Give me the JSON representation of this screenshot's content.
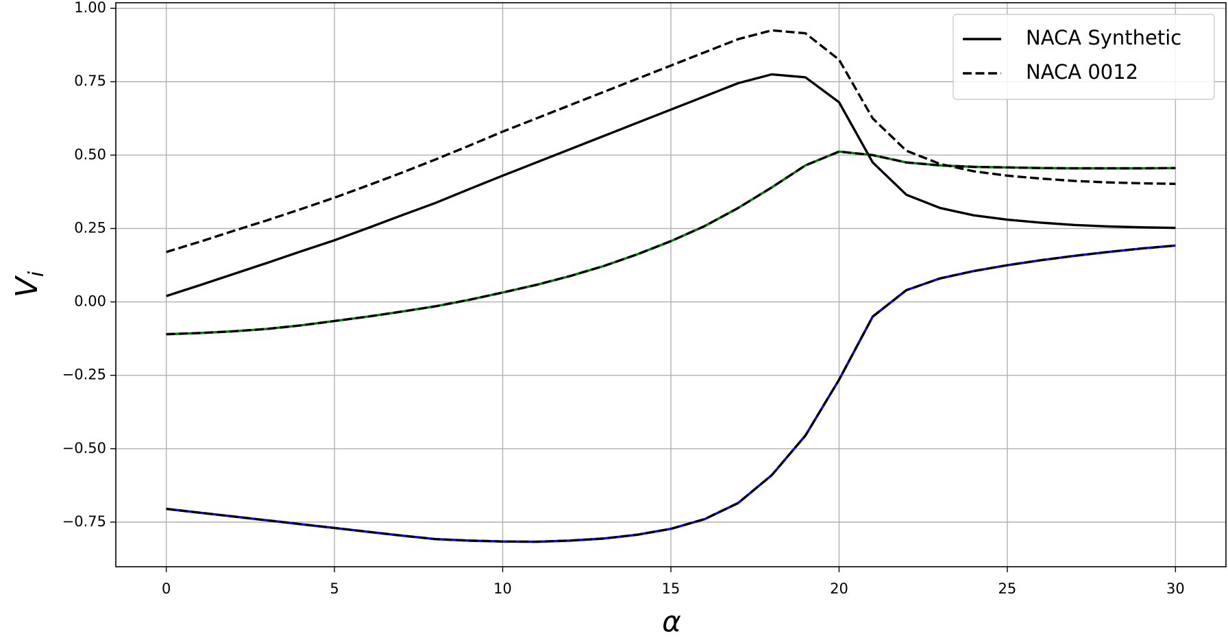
{
  "chart_data": {
    "type": "line",
    "xlabel": "α",
    "ylabel": "V",
    "ylabel_sub": "i",
    "x": [
      0,
      1,
      2,
      3,
      4,
      5,
      6,
      7,
      8,
      9,
      10,
      11,
      12,
      13,
      14,
      15,
      16,
      17,
      18,
      19,
      20,
      21,
      22,
      23,
      24,
      25,
      26,
      27,
      28,
      29,
      30
    ],
    "series": [
      {
        "name": "NACA Synthetic",
        "color": "#000000",
        "linestyle": "solid",
        "values": [
          0.02,
          0.057,
          0.095,
          0.133,
          0.172,
          0.21,
          0.252,
          0.295,
          0.337,
          0.384,
          0.43,
          0.475,
          0.52,
          0.565,
          0.61,
          0.655,
          0.7,
          0.745,
          0.775,
          0.765,
          0.68,
          0.475,
          0.365,
          0.32,
          0.295,
          0.28,
          0.27,
          0.262,
          0.257,
          0.254,
          0.252
        ]
      },
      {
        "name": "NACA 0012",
        "color": "#000000",
        "linestyle": "dashed",
        "values": [
          0.17,
          0.205,
          0.242,
          0.278,
          0.316,
          0.355,
          0.397,
          0.44,
          0.485,
          0.532,
          0.58,
          0.625,
          0.67,
          0.715,
          0.76,
          0.805,
          0.85,
          0.895,
          0.925,
          0.915,
          0.825,
          0.625,
          0.515,
          0.47,
          0.445,
          0.43,
          0.42,
          0.412,
          0.407,
          0.404,
          0.402
        ]
      },
      {
        "color": "#008000",
        "linestyle": "solid",
        "overlay_color": "#000000",
        "values": [
          -0.11,
          -0.106,
          -0.1,
          -0.092,
          -0.08,
          -0.065,
          -0.05,
          -0.033,
          -0.015,
          0.007,
          0.032,
          0.058,
          0.088,
          0.122,
          0.162,
          0.207,
          0.258,
          0.32,
          0.39,
          0.465,
          0.512,
          0.5,
          0.475,
          0.465,
          0.46,
          0.458,
          0.456,
          0.455,
          0.455,
          0.455,
          0.456
        ]
      },
      {
        "color": "#0000ff",
        "linestyle": "solid",
        "overlay_color": "#000000",
        "values": [
          -0.705,
          -0.718,
          -0.731,
          -0.744,
          -0.757,
          -0.77,
          -0.783,
          -0.796,
          -0.808,
          -0.813,
          -0.816,
          -0.817,
          -0.813,
          -0.806,
          -0.793,
          -0.773,
          -0.74,
          -0.685,
          -0.59,
          -0.455,
          -0.265,
          -0.05,
          0.04,
          0.08,
          0.105,
          0.125,
          0.142,
          0.157,
          0.17,
          0.182,
          0.192
        ]
      }
    ],
    "xlim": [
      -1.5,
      31.5
    ],
    "xticks": [
      0,
      5,
      10,
      15,
      20,
      25,
      30
    ],
    "ylim": [
      -0.902,
      1.019
    ],
    "yticks": [
      {
        "value": -0.75,
        "label": "−0.75"
      },
      {
        "value": -0.5,
        "label": "−0.50"
      },
      {
        "value": -0.25,
        "label": "−0.25"
      },
      {
        "value": 0,
        "label": "0.00"
      },
      {
        "value": 0.25,
        "label": "0.25"
      },
      {
        "value": 0.5,
        "label": "0.50"
      },
      {
        "value": 0.75,
        "label": "0.75"
      },
      {
        "value": 1,
        "label": "1.00"
      }
    ],
    "grid": true,
    "legend": "upper right"
  }
}
